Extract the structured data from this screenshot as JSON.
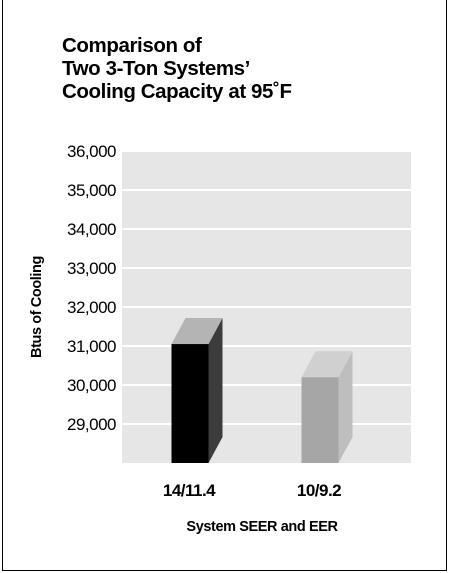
{
  "chart_data": {
    "type": "bar",
    "title_lines": [
      "Comparison of",
      "Two 3-Ton Systems’",
      "Cooling Capacity at 95˚F"
    ],
    "categories": [
      "14/11.4",
      "10/9.2"
    ],
    "values": [
      31050,
      30200
    ],
    "series": [
      {
        "values": [
          31050,
          30200
        ]
      }
    ],
    "xlabel": "System SEER and EER",
    "ylabel": "Btus of Cooling",
    "yticks": [
      "29,000",
      "30,000",
      "31,000",
      "32,000",
      "33,000",
      "34,000",
      "35,000",
      "36,000"
    ],
    "ytick_values": [
      29000,
      30000,
      31000,
      32000,
      33000,
      34000,
      35000,
      36000
    ],
    "ylim": [
      28000,
      36000
    ],
    "grid": true,
    "bar_colors": [
      "#000000",
      "#a6a6a6"
    ],
    "bar_top_colors": [
      "#b4b4b4",
      "#d0d0d0"
    ],
    "bar_side_colors": [
      "#3c3c3c",
      "#bebebe"
    ],
    "plot_background": "#e6e6e6",
    "grid_color": "#ffffff"
  }
}
